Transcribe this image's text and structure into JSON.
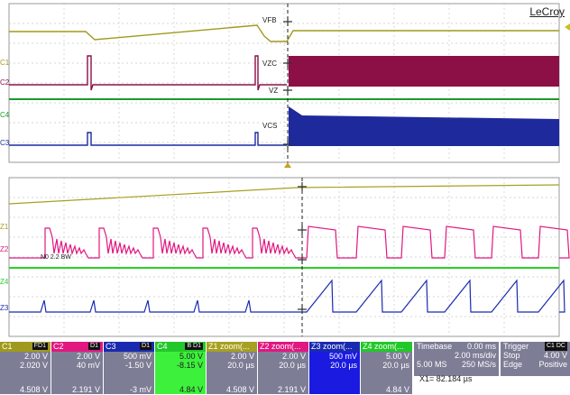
{
  "brand": "LeCroy",
  "upper": {
    "channel_tags": [
      "C1",
      "C2",
      "C4",
      "C3"
    ],
    "signal_labels": [
      "VFB",
      "VZC",
      "VZ",
      "VCS"
    ]
  },
  "lower": {
    "channel_tags": [
      "Z1",
      "Z2",
      "Z4",
      "Z3"
    ],
    "annotation": "N0  2.2 BW"
  },
  "colors": {
    "c1": "#a09a1c",
    "c2": "#8c1046",
    "c3": "#1e2a9c",
    "c4": "#1a9a2a",
    "z1": "#a8a020",
    "z2": "#e01880",
    "z3": "#1a2ab0",
    "z4": "#2ad02a"
  },
  "channels": [
    {
      "name": "C1",
      "badge": "FD1",
      "head_color": "#a09a1c",
      "scale": "2.00 V",
      "offset": "2.020 V",
      "reading": "4.508 V"
    },
    {
      "name": "C2",
      "badge": "D1",
      "head_color": "#e01880",
      "scale": "2.00 V",
      "offset": "40 mV",
      "reading": "2.191 V"
    },
    {
      "name": "C3",
      "badge": "D1",
      "head_color": "#1a2ab0",
      "scale": "500 mV",
      "offset": "-1.50 V",
      "reading": "-3 mV"
    },
    {
      "name": "C4",
      "badge": "B D1",
      "head_color": "#22c82a",
      "scale": "5.00 V",
      "offset": "-8.15 V",
      "reading": "4.84 V"
    },
    {
      "name": "Z1 zoom(...",
      "badge": "",
      "head_color": "#a8a020",
      "scale": "2.00 V",
      "offset": "20.0 µs",
      "reading": "4.508 V"
    },
    {
      "name": "Z2 zoom(...",
      "badge": "",
      "head_color": "#e01880",
      "scale": "2.00 V",
      "offset": "20.0 µs",
      "reading": "2.191 V"
    },
    {
      "name": "Z3 zoom(...",
      "badge": "",
      "head_color": "#1a2ab0",
      "scale": "500 mV",
      "offset": "20.0 µs",
      "reading": ""
    },
    {
      "name": "Z4 zoom(...",
      "badge": "",
      "head_color": "#22c82a",
      "scale": "5.00 V",
      "offset": "20.0 µs",
      "reading": "4.84 V"
    }
  ],
  "timebase": {
    "label": "Timebase",
    "delay": "0.00 ms",
    "per_div": "2.00 ms/div",
    "samples": "5.00 MS",
    "rate": "250 MS/s"
  },
  "trigger": {
    "label": "Trigger",
    "badge": "C1 DC",
    "mode": "Stop",
    "level": "4.00 V",
    "type": "Edge",
    "slope": "Positive"
  },
  "cursor_readout": "X1=  82.184 µs"
}
